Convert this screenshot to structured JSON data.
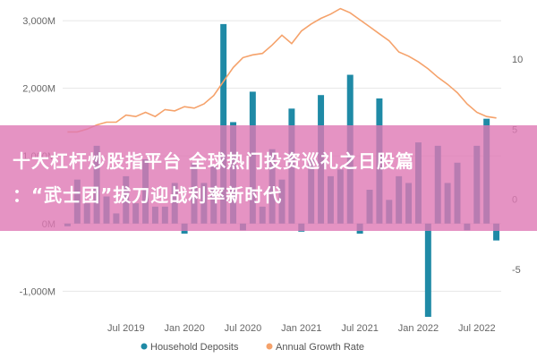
{
  "colors": {
    "bar": "#1f8aa6",
    "line": "#f5a26b",
    "banner": "#de78b4",
    "grid": "#e6e6e6"
  },
  "headline": {
    "line1": "十大杠杆炒股指平台 全球热门投资巡礼之日股篇",
    "line2": "：“武士团”拔刀迎战利率新时代"
  },
  "chart_data": {
    "type": "bar+line",
    "left_axis": {
      "ticks": [
        "3,000M",
        "2,000M",
        "1,000M",
        "0M",
        "-1,000M"
      ],
      "values": [
        3000,
        2000,
        1000,
        0,
        -1000
      ],
      "ylim": [
        -1300,
        3200
      ]
    },
    "right_axis": {
      "ticks": [
        "10",
        "5",
        "0",
        "-5"
      ],
      "values": [
        10,
        5,
        0,
        -5
      ],
      "ylim": [
        -8,
        13.7
      ]
    },
    "x_axis": {
      "ticks": [
        "Jul 2019",
        "Jan 2020",
        "Jul 2020",
        "Jan 2021",
        "Jul 2021",
        "Jan 2022",
        "Jul 2022"
      ]
    },
    "months": [
      "Jan 2019",
      "Feb 2019",
      "Mar 2019",
      "Apr 2019",
      "May 2019",
      "Jun 2019",
      "Jul 2019",
      "Aug 2019",
      "Sep 2019",
      "Oct 2019",
      "Nov 2019",
      "Dec 2019",
      "Jan 2020",
      "Feb 2020",
      "Mar 2020",
      "Apr 2020",
      "May 2020",
      "Jun 2020",
      "Jul 2020",
      "Aug 2020",
      "Sep 2020",
      "Oct 2020",
      "Nov 2020",
      "Dec 2020",
      "Jan 2021",
      "Feb 2021",
      "Mar 2021",
      "Apr 2021",
      "May 2021",
      "Jun 2021",
      "Jul 2021",
      "Aug 2021",
      "Sep 2021",
      "Oct 2021",
      "Nov 2021",
      "Dec 2021",
      "Jan 2022",
      "Feb 2022",
      "Mar 2022",
      "Apr 2022",
      "May 2022",
      "Jun 2022",
      "Jul 2022",
      "Aug 2022",
      "Sep 2022"
    ],
    "series": [
      {
        "name": "Household Deposits",
        "type": "bar",
        "values": [
          -40,
          650,
          300,
          1150,
          400,
          150,
          700,
          300,
          950,
          250,
          250,
          600,
          -150,
          900,
          600,
          850,
          2950,
          1500,
          -100,
          1950,
          250,
          1100,
          650,
          1700,
          -120,
          950,
          1900,
          700,
          800,
          2200,
          -150,
          500,
          1850,
          350,
          700,
          600,
          1200,
          -1380,
          1150,
          600,
          900,
          -100,
          1150,
          1550,
          -250
        ]
      },
      {
        "name": "Annual Growth Rate",
        "type": "line",
        "values": [
          4.8,
          4.8,
          5.0,
          5.3,
          5.5,
          5.5,
          6.0,
          5.9,
          6.2,
          5.9,
          6.4,
          6.3,
          6.6,
          6.5,
          6.8,
          7.4,
          8.4,
          9.4,
          10.1,
          10.3,
          10.4,
          11.0,
          11.7,
          11.1,
          12.0,
          12.5,
          12.9,
          13.2,
          13.6,
          13.3,
          12.8,
          12.3,
          11.8,
          11.3,
          10.5,
          10.2,
          9.8,
          9.3,
          8.7,
          8.2,
          7.6,
          6.8,
          6.2,
          5.9,
          5.8
        ]
      }
    ],
    "legend": {
      "position": "bottom",
      "entries": [
        "Household Deposits",
        "Annual Growth Rate"
      ]
    }
  }
}
